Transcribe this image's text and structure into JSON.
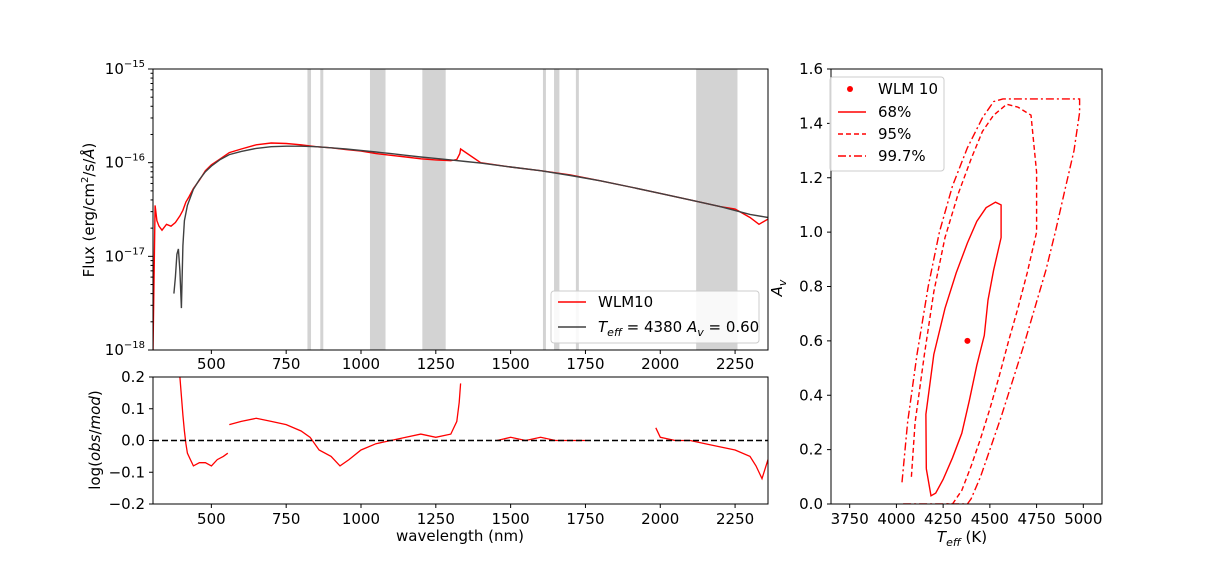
{
  "chart_data": [
    {
      "type": "line",
      "panel": "spectrum",
      "xlabel": "",
      "ylabel": "Flux (erg/cm²/s/Å)",
      "yscale": "log",
      "xlim": [
        305,
        2360
      ],
      "ylim": [
        1e-18,
        1e-15
      ],
      "xticks": [
        500,
        750,
        1000,
        1250,
        1500,
        1750,
        2000,
        2250
      ],
      "yticks": [
        {
          "base": "10",
          "exp": "−15",
          "value": 1e-15
        },
        {
          "base": "10",
          "exp": "−16",
          "value": 1e-16
        },
        {
          "base": "10",
          "exp": "−17",
          "value": 1e-17
        },
        {
          "base": "10",
          "exp": "−18",
          "value": 1e-18
        }
      ],
      "grid": false,
      "legend_position": "lower-right",
      "masked_bands": [
        [
          821,
          833
        ],
        [
          864,
          874
        ],
        [
          1030,
          1082
        ],
        [
          1205,
          1283
        ],
        [
          1608,
          1618
        ],
        [
          1645,
          1663
        ],
        [
          1718,
          1728
        ],
        [
          2120,
          2258
        ]
      ],
      "series": [
        {
          "name": "WLM10",
          "color": "#ff0000",
          "x": [
            305,
            312,
            318,
            325,
            335,
            350,
            365,
            380,
            395,
            405,
            415,
            425,
            440,
            460,
            480,
            500,
            530,
            560,
            600,
            650,
            700,
            750,
            800,
            850,
            900,
            950,
            1000,
            1050,
            1100,
            1150,
            1200,
            1250,
            1300,
            1320,
            1330,
            1333,
            1400,
            1500,
            1600,
            1700,
            1800,
            1900,
            2000,
            2100,
            2200,
            2250,
            2300,
            2330,
            2360
          ],
          "y": [
            1e-18,
            3.5e-17,
            2.4e-17,
            2.1e-17,
            1.9e-17,
            2.2e-17,
            2.1e-17,
            2.3e-17,
            2.7e-17,
            3.1e-17,
            3.8e-17,
            4.3e-17,
            5.3e-17,
            6.5e-17,
            8.2e-17,
            9.5e-17,
            1.1e-16,
            1.28e-16,
            1.4e-16,
            1.55e-16,
            1.62e-16,
            1.6e-16,
            1.55e-16,
            1.48e-16,
            1.44e-16,
            1.38e-16,
            1.33e-16,
            1.25e-16,
            1.2e-16,
            1.15e-16,
            1.1e-16,
            1.07e-16,
            1.05e-16,
            1.08e-16,
            1.25e-16,
            1.4e-16,
            1e-16,
            9e-17,
            8.2e-17,
            7.4e-17,
            6.4e-17,
            5.5e-17,
            4.7e-17,
            4e-17,
            3.4e-17,
            3.2e-17,
            2.6e-17,
            2.2e-17,
            2.5e-17
          ]
        },
        {
          "name": "T_eff = 4380 A_v = 0.60",
          "color": "#404040",
          "x": [
            375,
            380,
            385,
            390,
            395,
            400,
            405,
            410,
            420,
            440,
            460,
            480,
            500,
            530,
            560,
            600,
            650,
            700,
            750,
            800,
            850,
            900,
            950,
            1000,
            1050,
            1100,
            1150,
            1200,
            1250,
            1300,
            1350,
            1400,
            1500,
            1600,
            1700,
            1800,
            1900,
            2000,
            2100,
            2200,
            2300,
            2360
          ],
          "y": [
            4e-18,
            6e-18,
            1.05e-17,
            1.2e-17,
            7e-18,
            2.8e-18,
            1.3e-17,
            2.4e-17,
            3.5e-17,
            5.2e-17,
            6.6e-17,
            8e-17,
            9.2e-17,
            1.08e-16,
            1.22e-16,
            1.32e-16,
            1.42e-16,
            1.48e-16,
            1.5e-16,
            1.5e-16,
            1.48e-16,
            1.44e-16,
            1.4e-16,
            1.35e-16,
            1.3e-16,
            1.25e-16,
            1.2e-16,
            1.15e-16,
            1.11e-16,
            1.07e-16,
            1.03e-16,
            9.9e-17,
            9e-17,
            8.2e-17,
            7.3e-17,
            6.4e-17,
            5.5e-17,
            4.7e-17,
            4e-17,
            3.4e-17,
            2.8e-17,
            2.6e-17
          ]
        }
      ]
    },
    {
      "type": "line",
      "panel": "residual",
      "xlabel": "wavelength (nm)",
      "ylabel": "log(obs/mod)",
      "xlim": [
        305,
        2360
      ],
      "ylim": [
        -0.2,
        0.2
      ],
      "xticks": [
        500,
        750,
        1000,
        1250,
        1500,
        1750,
        2000,
        2250
      ],
      "yticks": [
        "0.2",
        "0.1",
        "0.0",
        "−0.1",
        "−0.2"
      ],
      "ytick_values": [
        0.2,
        0.1,
        0.0,
        -0.1,
        -0.2
      ],
      "grid": false,
      "reference_line": {
        "y": 0.0,
        "style": "dashed",
        "color": "#000000"
      },
      "series": [
        {
          "color": "#ff0000",
          "x": [
            395,
            400,
            405,
            410,
            415,
            420,
            430,
            440,
            460,
            480,
            500,
            520,
            540,
            555
          ],
          "y": [
            0.2,
            0.14,
            0.08,
            0.03,
            -0.01,
            -0.04,
            -0.06,
            -0.08,
            -0.07,
            -0.07,
            -0.08,
            -0.06,
            -0.05,
            -0.04
          ]
        },
        {
          "color": "#ff0000",
          "x": [
            560,
            600,
            650,
            700,
            750,
            800,
            830,
            860,
            900,
            930,
            960,
            1000,
            1050,
            1100,
            1150,
            1200,
            1250,
            1300,
            1320,
            1328,
            1333
          ],
          "y": [
            0.05,
            0.06,
            0.07,
            0.06,
            0.05,
            0.03,
            0.01,
            -0.03,
            -0.05,
            -0.08,
            -0.06,
            -0.03,
            -0.01,
            0.0,
            0.01,
            0.02,
            0.01,
            0.02,
            0.06,
            0.12,
            0.18
          ]
        },
        {
          "color": "#ff0000",
          "x": [
            1455,
            1500,
            1550,
            1600,
            1650,
            1700,
            1750
          ],
          "y": [
            0.0,
            0.01,
            0.0,
            0.01,
            0.0,
            0.0,
            0.0
          ]
        },
        {
          "color": "#ff0000",
          "x": [
            1985,
            2000,
            2050,
            2100,
            2150,
            2200,
            2250,
            2300,
            2320,
            2340,
            2360
          ],
          "y": [
            0.04,
            0.01,
            0.0,
            0.0,
            -0.01,
            -0.02,
            -0.03,
            -0.05,
            -0.08,
            -0.12,
            -0.06
          ]
        }
      ]
    },
    {
      "type": "line",
      "panel": "contours",
      "xlabel": "T_eff (K)",
      "ylabel": "A_v",
      "xlim": [
        3650,
        5100
      ],
      "ylim": [
        0.0,
        1.6
      ],
      "xticks": [
        3750,
        4000,
        4250,
        4500,
        4750,
        5000
      ],
      "yticks": [
        "0.0",
        "0.2",
        "0.4",
        "0.6",
        "0.8",
        "1.0",
        "1.2",
        "1.4",
        "1.6"
      ],
      "ytick_values": [
        0.0,
        0.2,
        0.4,
        0.6,
        0.8,
        1.0,
        1.2,
        1.4,
        1.6
      ],
      "grid": false,
      "legend_position": "upper-left",
      "point": {
        "name": "WLM 10",
        "x": 4380,
        "y": 0.6,
        "color": "#ff0000"
      },
      "contours": [
        {
          "name": "68%",
          "style": "solid",
          "color": "#ff0000",
          "x": [
            4160,
            4158,
            4200,
            4260,
            4320,
            4380,
            4430,
            4480,
            4530,
            4560,
            4560,
            4520,
            4490,
            4470,
            4430,
            4390,
            4350,
            4300,
            4250,
            4210,
            4185,
            4160
          ],
          "y": [
            0.13,
            0.33,
            0.55,
            0.72,
            0.85,
            0.96,
            1.04,
            1.09,
            1.11,
            1.1,
            0.98,
            0.86,
            0.75,
            0.62,
            0.51,
            0.38,
            0.26,
            0.17,
            0.09,
            0.04,
            0.03,
            0.13
          ]
        },
        {
          "name": "95%",
          "style": "dashed",
          "color": "#ff0000",
          "x": [
            4080,
            4100,
            4150,
            4200,
            4260,
            4330,
            4400,
            4460,
            4520,
            4590,
            4650,
            4720,
            4750,
            4750,
            4700,
            4650,
            4600,
            4550,
            4500,
            4450,
            4400,
            4350,
            4300,
            4270
          ],
          "y": [
            0.1,
            0.3,
            0.55,
            0.78,
            0.98,
            1.14,
            1.27,
            1.37,
            1.43,
            1.47,
            1.46,
            1.43,
            1.22,
            1.0,
            0.85,
            0.72,
            0.6,
            0.47,
            0.35,
            0.24,
            0.14,
            0.05,
            0.0,
            0.0
          ]
        },
        {
          "name": "99.7%",
          "style": "dashdot",
          "color": "#ff0000",
          "x": [
            4030,
            4060,
            4110,
            4170,
            4230,
            4300,
            4380,
            4460,
            4520,
            4570,
            4600,
            4980,
            4980,
            4950,
            4900,
            4850,
            4800,
            4740,
            4680,
            4620,
            4560,
            4500,
            4450,
            4400,
            4380,
            4200,
            4030
          ],
          "y": [
            0.08,
            0.3,
            0.55,
            0.8,
            1.0,
            1.17,
            1.31,
            1.42,
            1.48,
            1.49,
            1.49,
            1.49,
            1.44,
            1.3,
            1.15,
            1.0,
            0.86,
            0.72,
            0.58,
            0.45,
            0.32,
            0.2,
            0.1,
            0.02,
            0.0,
            0.0,
            0.0
          ]
        }
      ]
    }
  ],
  "legend_main": {
    "item1": "WLM10",
    "item2_teff": "T",
    "item2_teff_sub": "eff",
    "item2_eq1": " = 4380 ",
    "item2_av": "A",
    "item2_av_sub": "v",
    "item2_eq2": " = 0.60"
  },
  "legend_contours": {
    "point_label": "WLM 10",
    "c68": "68%",
    "c95": "95%",
    "c997": "99.7%"
  },
  "labels": {
    "flux_pre": "Flux (erg/cm",
    "flux_sup": "2",
    "flux_post": "/s/",
    "flux_angstrom": "Å",
    "flux_close": ")",
    "res_pre": "log(",
    "res_obs": "obs",
    "res_slash": "/",
    "res_mod": "mod",
    "res_close": ")",
    "wavelength": "wavelength (nm)",
    "teff_T": "T",
    "teff_sub": "eff",
    "teff_unit": " (K)",
    "av_A": "A",
    "av_sub": "v"
  }
}
